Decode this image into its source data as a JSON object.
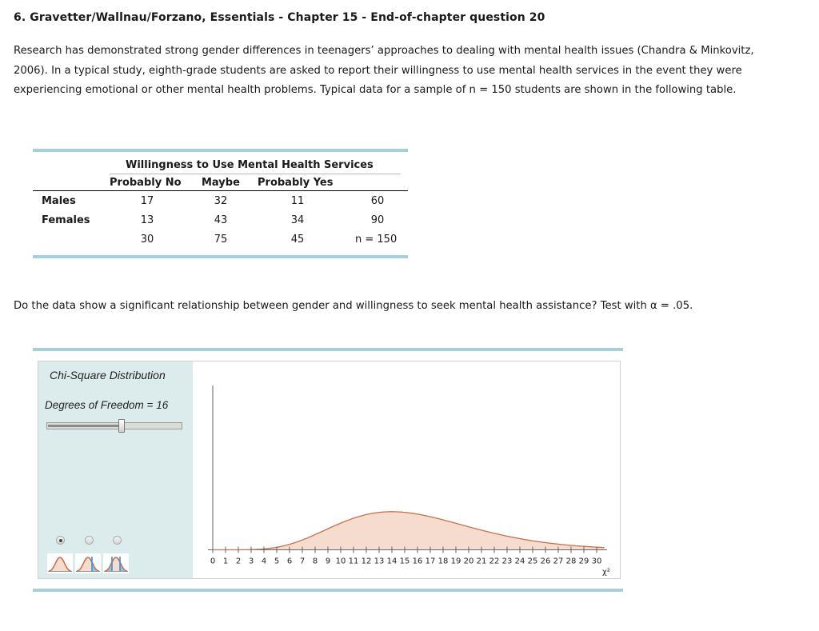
{
  "question": {
    "title": "6. Gravetter/Wallnau/Forzano, Essentials - Chapter 15 - End-of-chapter question 20",
    "paragraph": "Research has demonstrated strong gender differences in teenagers’ approaches to dealing with mental health issues (Chandra & Minkovitz, 2006). In a typical study, eighth-grade students are asked to report their willingness to use mental health services in the event they were experiencing emotional or other mental health problems. Typical data for a sample of n = 150 students are shown in the following table.",
    "prompt": "Do the data show a significant relationship between gender and willingness to seek mental health assistance? Test with α = .05."
  },
  "table": {
    "group_header": "Willingness to Use Mental Health Services",
    "columns": [
      "Probably No",
      "Maybe",
      "Probably Yes"
    ],
    "rows": [
      {
        "label": "Males",
        "values": [
          "17",
          "32",
          "11"
        ],
        "total": "60"
      },
      {
        "label": "Females",
        "values": [
          "13",
          "43",
          "34"
        ],
        "total": "90"
      }
    ],
    "column_totals": [
      "30",
      "75",
      "45"
    ],
    "grand_total": "n = 150"
  },
  "widget": {
    "title": "Chi-Square Distribution",
    "df_label": "Degrees of Freedom = 16",
    "slider": {
      "value": 16,
      "min": 1,
      "max": 30
    },
    "tail_options": [
      {
        "name": "no-tail",
        "selected": true
      },
      {
        "name": "one-tail",
        "selected": false
      },
      {
        "name": "two-tail",
        "selected": false
      }
    ],
    "axis_symbol": "χ²"
  },
  "colors": {
    "rule": "#a7cfd9",
    "panel_bg": "#dcecec",
    "curve_stroke": "#c8704a",
    "curve_fill": "#f6dccf",
    "marker_blue": "#3a8fd8"
  },
  "chart_data": {
    "type": "area",
    "title": "Chi-Square Distribution",
    "df": 16,
    "xlabel": "χ²",
    "ylabel": "",
    "xlim": [
      0,
      30.7
    ],
    "x_ticks": [
      0,
      1,
      2,
      3,
      4,
      5,
      6,
      7,
      8,
      9,
      10,
      11,
      12,
      13,
      14,
      15,
      16,
      17,
      18,
      19,
      20,
      21,
      22,
      23,
      24,
      25,
      26,
      27,
      28,
      29,
      30
    ],
    "peak_x": 14,
    "grid": false,
    "legend": "none"
  }
}
